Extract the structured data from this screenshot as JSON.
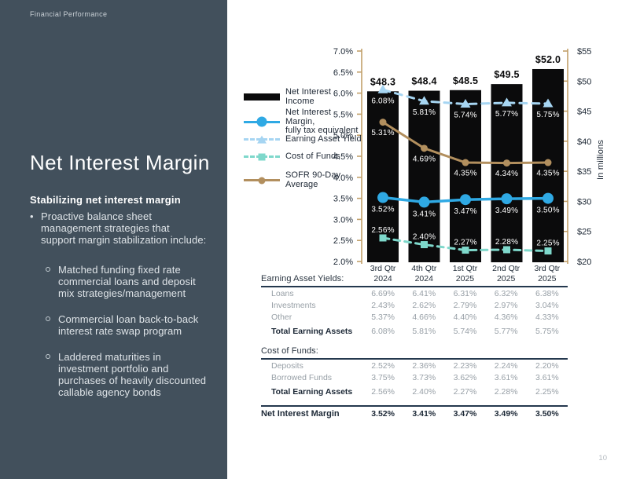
{
  "slide": {
    "eyebrow": "Financial Performance",
    "title": "Net Interest Margin",
    "page_number": "10"
  },
  "sidebar": {
    "heading": "Stabilizing net interest margin",
    "bullet": "Proactive balance sheet\nmanagement strategies that\nsupport margin stabilization include:",
    "sub_bullets": [
      "Matched funding fixed rate\ncommercial loans and deposit\nmix strategies/management",
      "Commercial loan back-to-back\ninterest rate swap program",
      "Laddered maturities in\ninvestment portfolio and\npurchases of heavily discounted\ncallable agency bonds"
    ]
  },
  "chart_data": {
    "type": "combo bar+line",
    "categories": [
      [
        "3rd Qtr",
        "2024"
      ],
      [
        "4th Qtr",
        "2024"
      ],
      [
        "1st Qtr",
        "2025"
      ],
      [
        "2nd Qtr",
        "2025"
      ],
      [
        "3rd Qtr",
        "2025"
      ]
    ],
    "bar_series": {
      "name": "Net Interest Income",
      "unit": "$ millions",
      "axis": "right",
      "values": [
        48.3,
        48.4,
        48.5,
        49.5,
        52.0
      ],
      "labels": [
        "$48.3",
        "$48.4",
        "$48.5",
        "$49.5",
        "$52.0"
      ],
      "color": "#0b0b0c"
    },
    "line_series": [
      {
        "id": "earning-asset-yield",
        "name": "Earning Asset Yield",
        "values": [
          6.08,
          5.81,
          5.74,
          5.77,
          5.75
        ],
        "labels": [
          "6.08%",
          "5.81%",
          "5.74%",
          "5.77%",
          "5.75%"
        ],
        "color": "#a6d5f2",
        "style": "dashed",
        "dash": "9,7",
        "width": 3,
        "marker": "triangle",
        "label_dy": 14
      },
      {
        "id": "sofr-90-day-average",
        "name": "SOFR 90-Day Average",
        "values": [
          5.31,
          4.69,
          4.35,
          4.34,
          4.35
        ],
        "labels": [
          "5.31%",
          "4.69%",
          "4.35%",
          "4.34%",
          "4.35%"
        ],
        "color": "#b28f5e",
        "style": "solid",
        "dash": "",
        "width": 3,
        "marker": "circle-small",
        "label_dy": 13.5
      },
      {
        "id": "cost-of-funds",
        "name": "Cost of Funds",
        "values": [
          2.56,
          2.4,
          2.27,
          2.28,
          2.25
        ],
        "labels": [
          "2.56%",
          "2.40%",
          "2.27%",
          "2.28%",
          "2.25%"
        ],
        "color": "#7ed8cb",
        "style": "dashed",
        "dash": "8,6",
        "width": 3,
        "marker": "square",
        "label_dy": -10
      },
      {
        "id": "net-interest-margin",
        "name": "Net Interest Margin, fully tax equivalent",
        "values": [
          3.52,
          3.41,
          3.47,
          3.49,
          3.5
        ],
        "labels": [
          "3.52%",
          "3.41%",
          "3.47%",
          "3.49%",
          "3.50%"
        ],
        "color": "#2fa9e4",
        "style": "solid",
        "dash": "",
        "width": 3.5,
        "marker": "circle",
        "label_dy": 15
      }
    ],
    "left_axis": {
      "min": 2.0,
      "max": 7.0,
      "step": 0.5,
      "ticks": [
        "7.0%",
        "6.5%",
        "6.0%",
        "5.5%",
        "5.0%",
        "4.5%",
        "4.0%",
        "3.5%",
        "3.0%",
        "2.5%",
        "2.0%"
      ]
    },
    "right_axis": {
      "min": 20,
      "max": 55,
      "step": 5,
      "ticks": [
        "$55",
        "$50",
        "$45",
        "$40",
        "$35",
        "$30",
        "$25",
        "$20"
      ],
      "title": "In millions"
    },
    "axis_color": "#c2a06a",
    "legend": [
      {
        "line1": "Net Interest Income",
        "line2": "",
        "swatch": "bar",
        "color": "#0b0b0c"
      },
      {
        "line1": "Net Interest Margin,",
        "line2": "fully tax equivalent",
        "swatch": "solid-circle",
        "color": "#2fa9e4"
      },
      {
        "line1": "Earning Asset Yield",
        "line2": "",
        "swatch": "dash-triangle",
        "color": "#a6d5f2"
      },
      {
        "line1": "Cost of Funds",
        "line2": "",
        "swatch": "dash-square",
        "color": "#7ed8cb"
      },
      {
        "line1": "SOFR 90-Day",
        "line2": "Average",
        "swatch": "solid-circle-small",
        "color": "#b28f5e"
      }
    ]
  },
  "table": {
    "sections": [
      {
        "header": "Earning Asset Yields:",
        "show_quarters": true,
        "rows": [
          {
            "label": "Loans",
            "values": [
              "6.69%",
              "6.41%",
              "6.31%",
              "6.32%",
              "6.38%"
            ],
            "bold": false
          },
          {
            "label": "Investments",
            "values": [
              "2.43%",
              "2.62%",
              "2.79%",
              "2.97%",
              "3.04%"
            ],
            "bold": false
          },
          {
            "label": "Other",
            "values": [
              "5.37%",
              "4.66%",
              "4.40%",
              "4.36%",
              "4.33%"
            ],
            "bold": false
          },
          {
            "label": "Total Earning Assets",
            "values": [
              "6.08%",
              "5.81%",
              "5.74%",
              "5.77%",
              "5.75%"
            ],
            "bold": true
          }
        ]
      },
      {
        "header": "Cost of Funds:",
        "show_quarters": false,
        "rows": [
          {
            "label": "Deposits",
            "values": [
              "2.52%",
              "2.36%",
              "2.23%",
              "2.24%",
              "2.20%"
            ],
            "bold": false
          },
          {
            "label": "Borrowed Funds",
            "values": [
              "3.75%",
              "3.73%",
              "3.62%",
              "3.61%",
              "3.61%"
            ],
            "bold": false
          },
          {
            "label": "Total Earning Assets",
            "values": [
              "2.56%",
              "2.40%",
              "2.27%",
              "2.28%",
              "2.25%"
            ],
            "bold": true
          }
        ]
      }
    ],
    "footer": {
      "label": "Net Interest Margin",
      "values": [
        "3.52%",
        "3.41%",
        "3.47%",
        "3.49%",
        "3.50%"
      ]
    }
  }
}
